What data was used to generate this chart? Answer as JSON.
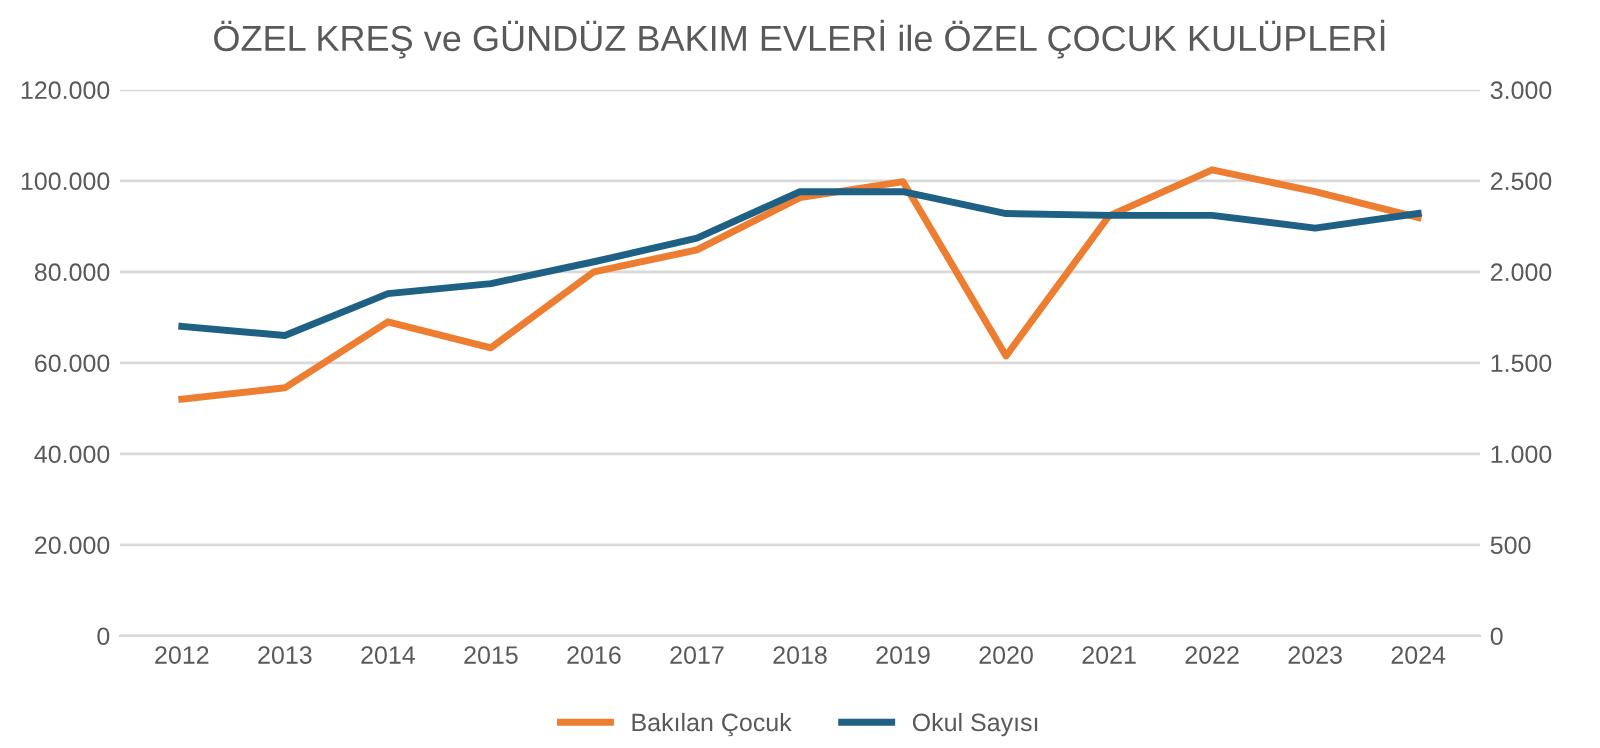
{
  "chart_data": {
    "type": "line",
    "title": "ÖZEL KREŞ ve GÜNDÜZ BAKIM EVLERİ ile ÖZEL ÇOCUK KULÜPLERİ",
    "categories": [
      "2012",
      "2013",
      "2014",
      "2015",
      "2016",
      "2017",
      "2018",
      "2019",
      "2020",
      "2021",
      "2022",
      "2023",
      "2024"
    ],
    "series": [
      {
        "name": "Bakılan Çocuk",
        "color": "#ed7d31",
        "values": [
          52000,
          54500,
          69000,
          63300,
          80000,
          84800,
          96300,
          99800,
          61500,
          92300,
          102400,
          97600,
          91900
        ]
      },
      {
        "name": "Okul Sayısı",
        "color": "#1f6184",
        "axis": "y2",
        "values": [
          1700,
          1650,
          1880,
          1935,
          2055,
          2185,
          2440,
          2440,
          2320,
          2310,
          2310,
          2240,
          2320
        ]
      }
    ],
    "ylim": [
      0,
      120000
    ],
    "yticks": [
      0,
      {
        "value": 20000,
        "label": "20.000"
      },
      {
        "value": 40000,
        "label": "40.000"
      },
      {
        "value": 60000,
        "label": "60.000"
      },
      {
        "value": 80000,
        "label": "80.000"
      },
      {
        "value": 100000,
        "label": "100.000"
      },
      {
        "value": 120000,
        "label": "120.000"
      }
    ],
    "y2lim": [
      0,
      3000
    ],
    "y2ticks": [
      0,
      500,
      {
        "value": 1000,
        "label": "1.000"
      },
      {
        "value": 1500,
        "label": "1.500"
      },
      {
        "value": 2000,
        "label": "2.000"
      },
      {
        "value": 2500,
        "label": "2.500"
      },
      {
        "value": 3000,
        "label": "3.000"
      }
    ],
    "grid": "y",
    "legend": "bottom",
    "marker": "none",
    "line_style": "solid"
  }
}
